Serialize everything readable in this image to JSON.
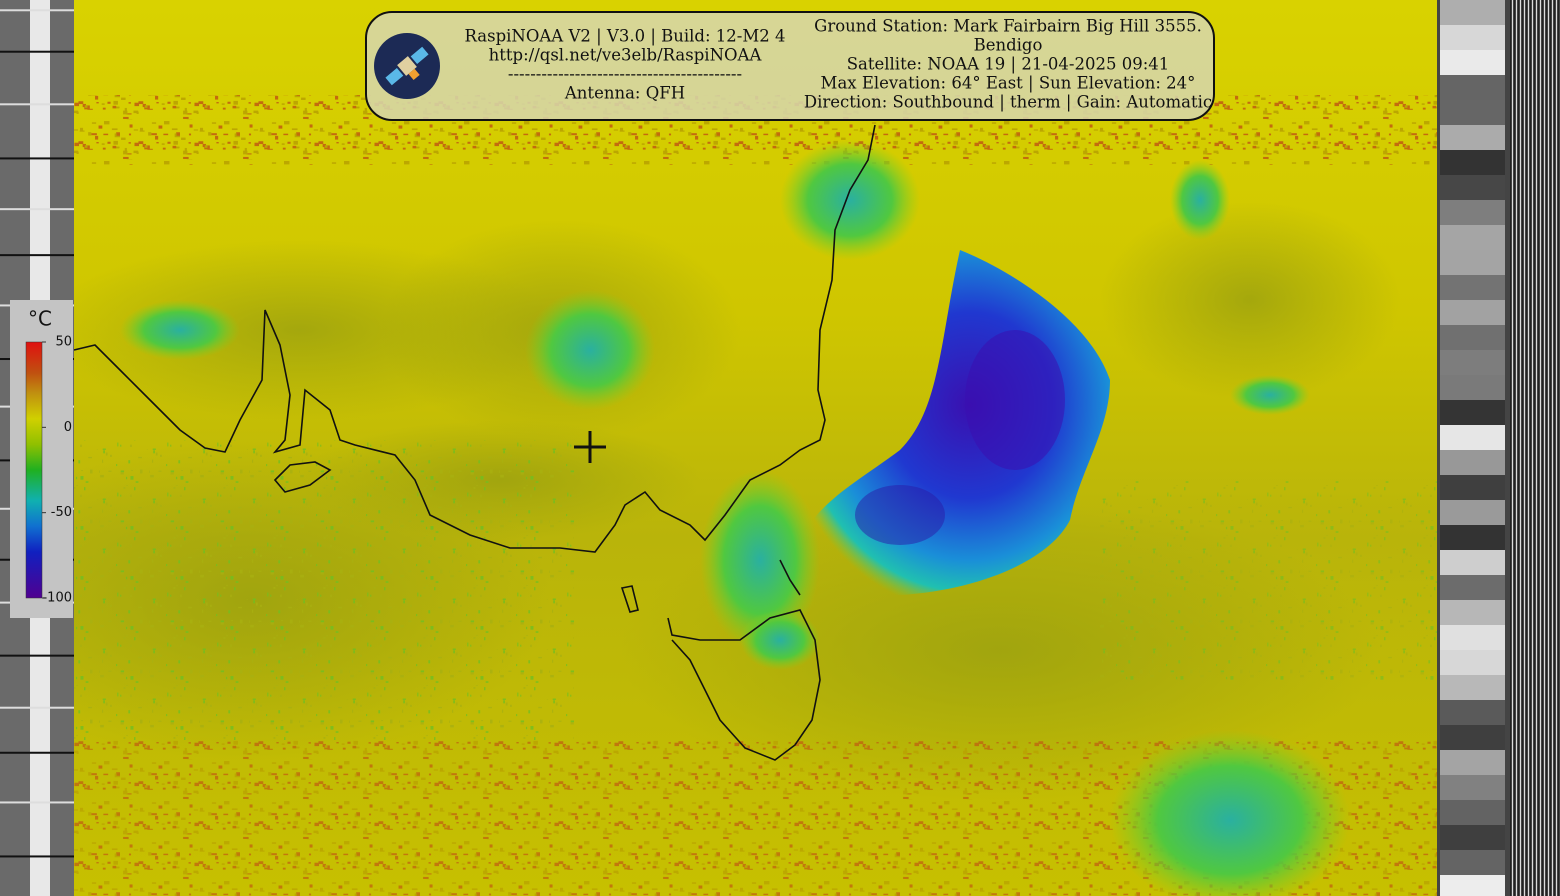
{
  "header": {
    "left": [
      "RaspiNOAA V2 | V3.0 | Build: 12-M2 4",
      "http://qsl.net/ve3elb/RaspiNOAA",
      "------------------------------------------",
      "Antenna: QFH"
    ],
    "right": [
      "Ground Station: Mark Fairbairn Big Hill 3555.",
      "Bendigo",
      "Satellite: NOAA 19 | 21-04-2025 09:41",
      "Max Elevation: 64° East | Sun Elevation: 24°",
      "Direction: Southbound | therm | Gain: Automatic"
    ]
  },
  "legend": {
    "unit": "°C",
    "lim": [
      -100,
      50
    ],
    "ticks": [
      50,
      0,
      -50,
      -100
    ]
  }
}
